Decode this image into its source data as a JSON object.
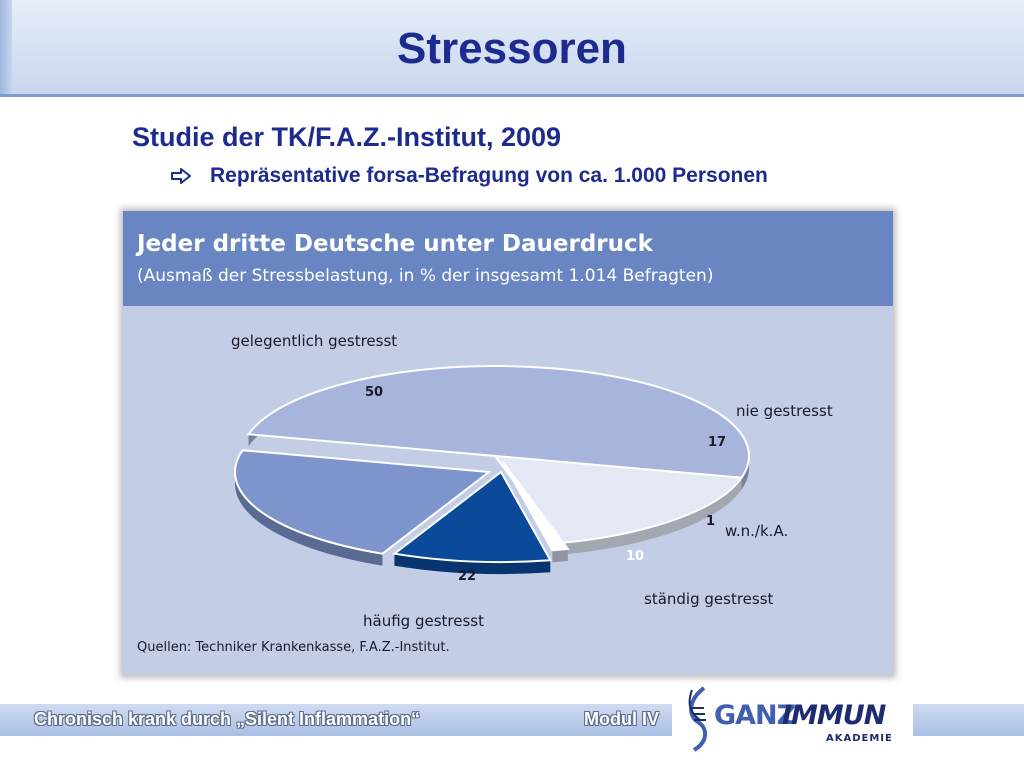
{
  "slide": {
    "title": "Stressoren",
    "subtitle": "Studie der TK/F.A.Z.-Institut, 2009",
    "bullet": "Repräsentative forsa-Befragung von ca. 1.000 Personen"
  },
  "figure": {
    "title": "Jeder dritte Deutsche unter Dauerdruck",
    "subtitle": "(Ausmaß der Stressbelastung, in % der insgesamt 1.014 Befragten)",
    "source": "Quellen: Techniker Krankenkasse, F.A.Z.-Institut."
  },
  "chart_data": {
    "type": "pie",
    "title": "Jeder dritte Deutsche unter Dauerdruck",
    "subtitle": "(Ausmaß der Stressbelastung, in % der insgesamt 1.014 Befragten)",
    "unit": "%",
    "slices": [
      {
        "label": "gelegentlich gestresst",
        "value": 50,
        "color": "#a7b5dc"
      },
      {
        "label": "nie gestresst",
        "value": 17,
        "color": "#e3e8f4"
      },
      {
        "label": "w.n./k.A.",
        "value": 1,
        "color": "#ffffff"
      },
      {
        "label": "ständig gestresst",
        "value": 10,
        "color": "#0b4a9a"
      },
      {
        "label": "häufig gestresst",
        "value": 22,
        "color": "#7d95cc"
      }
    ]
  },
  "footer": {
    "text": "Chronisch krank durch „Silent Inflammation“",
    "module": "Modul IV"
  },
  "logo": {
    "ganz": "GANZ",
    "immun": "IMMUN",
    "akademie": "AKADEMIE"
  },
  "colors": {
    "title_blue": "#1d2b8f",
    "figure_header": "#6a86c2",
    "figure_background": "#c3cde6"
  }
}
